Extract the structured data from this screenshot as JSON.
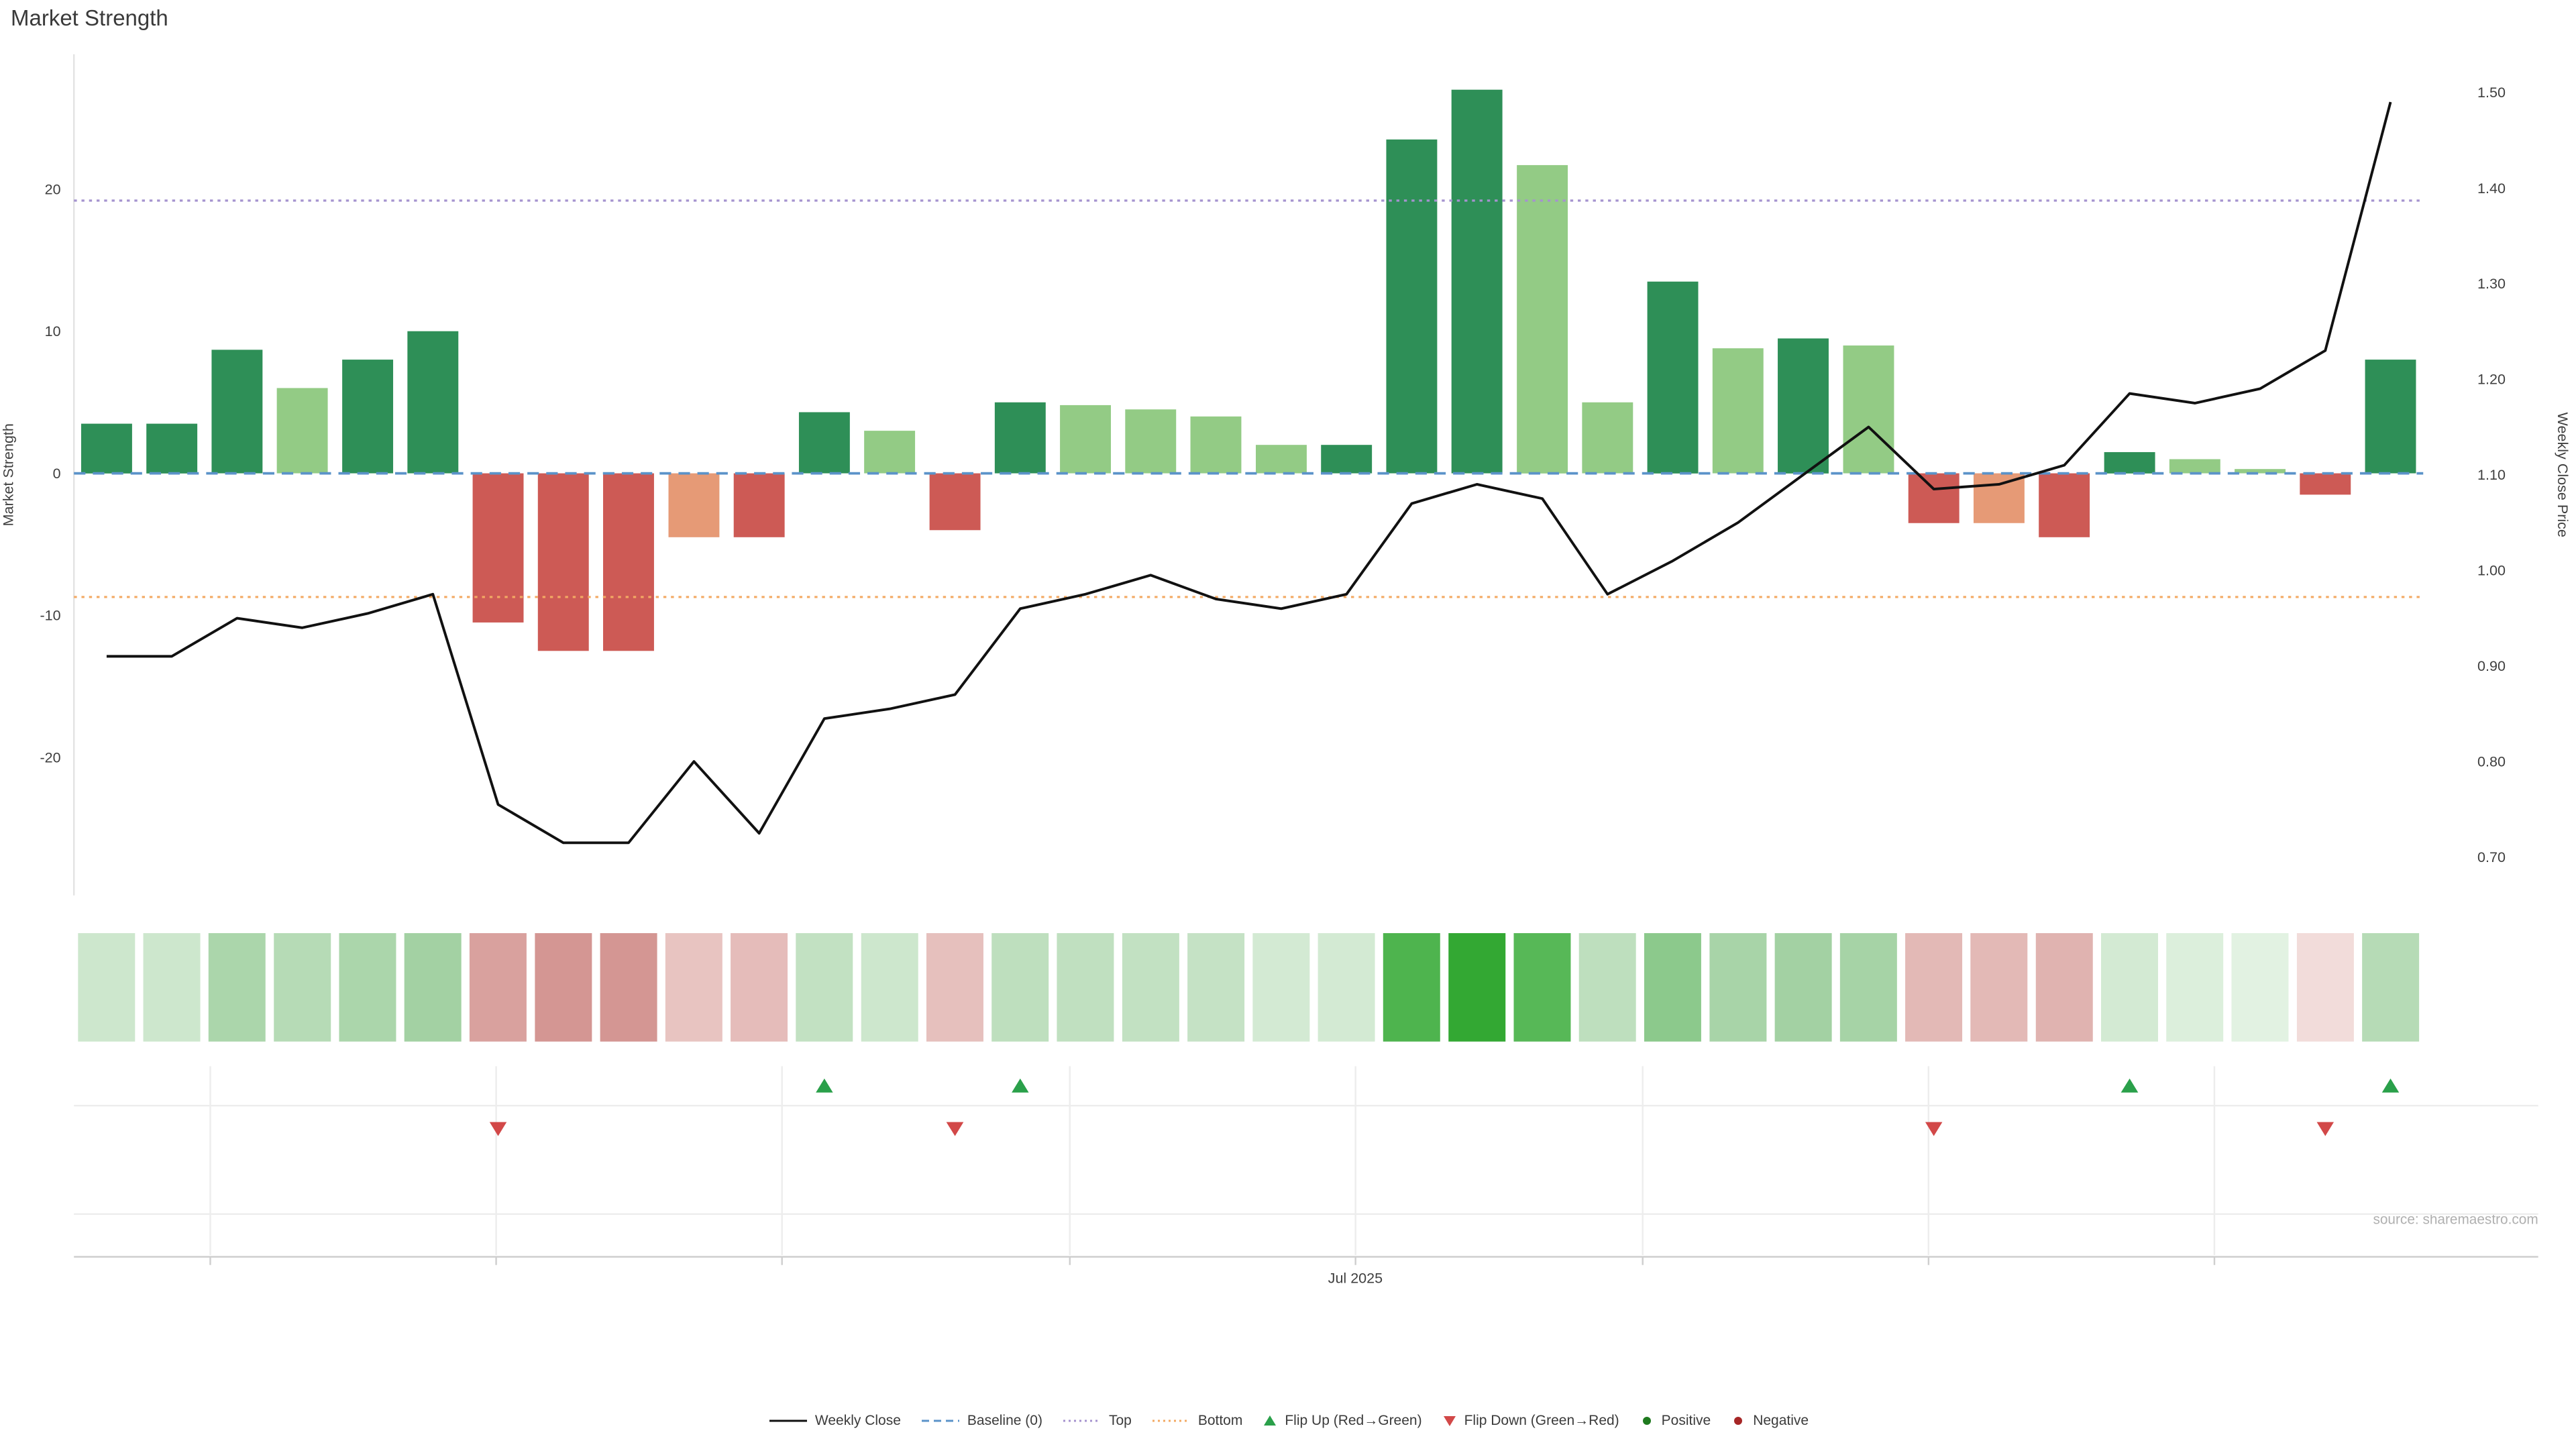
{
  "title": "Market Strength",
  "source": "source: sharemaestro.com",
  "axes": {
    "left_label": "Market Strength",
    "right_label": "Weekly Close Price",
    "left_ticks": [
      "-20",
      "-10",
      "0",
      "10",
      "20"
    ],
    "right_ticks": [
      "0.70",
      "0.80",
      "0.90",
      "1.00",
      "1.10",
      "1.20",
      "1.30",
      "1.40",
      "1.50"
    ],
    "x_tick_label": "Jul 2025"
  },
  "colors": {
    "bar_dark_green": "#2e8f57",
    "bar_light_green": "#93cb85",
    "bar_red": "#cd5a55",
    "bar_salmon": "#e69a76",
    "price_line": "#111111",
    "baseline": "#5b93c9",
    "top_line": "#a593cf",
    "bottom_line": "#f3a963",
    "flip_up": "#2aa04a",
    "flip_down": "#d24848"
  },
  "chart_data": {
    "type": "bar",
    "title": "Market Strength",
    "xlabel": "",
    "ylabel_left": "Market Strength",
    "ylabel_right": "Weekly Close Price",
    "n": 36,
    "ylim_left": [
      -29.7,
      29.5
    ],
    "ylim_right": [
      0.66,
      1.54
    ],
    "bars": {
      "name": "Market Strength",
      "values": [
        3.5,
        3.5,
        8.7,
        6,
        8,
        10,
        -10.5,
        -12.5,
        -12.5,
        -4.5,
        -4.5,
        4.3,
        3,
        -4,
        5,
        4.8,
        4.5,
        4,
        2,
        2,
        23.5,
        27,
        21.7,
        5,
        13.5,
        8.8,
        9.5,
        9,
        -3.5,
        -3.5,
        -4.5,
        1.5,
        1,
        0.3,
        -1.5,
        8
      ],
      "color_keys": [
        "dark_green",
        "dark_green",
        "dark_green",
        "light_green",
        "dark_green",
        "dark_green",
        "red",
        "red",
        "red",
        "salmon",
        "red",
        "dark_green",
        "light_green",
        "red",
        "dark_green",
        "light_green",
        "light_green",
        "light_green",
        "light_green",
        "dark_green",
        "dark_green",
        "dark_green",
        "light_green",
        "light_green",
        "dark_green",
        "light_green",
        "dark_green",
        "light_green",
        "red",
        "salmon",
        "red",
        "dark_green",
        "light_green",
        "light_green",
        "red",
        "dark_green"
      ]
    },
    "line": {
      "name": "Weekly Close",
      "axis": "right",
      "values": [
        0.91,
        0.91,
        0.95,
        0.94,
        0.955,
        0.975,
        0.755,
        0.715,
        0.715,
        0.8,
        0.725,
        0.845,
        0.855,
        0.87,
        0.96,
        0.975,
        0.995,
        0.97,
        0.96,
        0.975,
        1.07,
        1.09,
        1.075,
        0.975,
        1.01,
        1.05,
        1.1,
        1.15,
        1.085,
        1.09,
        1.11,
        1.185,
        1.175,
        1.19,
        1.23,
        1.49
      ]
    },
    "reference_lines": {
      "baseline": 0,
      "top": 19.2,
      "bottom": -8.7
    },
    "heatmap": [
      "#cde7cd",
      "#cde7cd",
      "#abd6ab",
      "#b6dbb6",
      "#abd6ab",
      "#a3d1a3",
      "#d9a19e",
      "#d49693",
      "#d49693",
      "#e8c4c1",
      "#e5bcba",
      "#c2e1c2",
      "#cde7cd",
      "#e6c0bd",
      "#bedfbe",
      "#c0e0c0",
      "#c2e1c2",
      "#c5e2c5",
      "#d3ead3",
      "#d3ead3",
      "#4eb44e",
      "#33a833",
      "#57b857",
      "#bedfbe",
      "#8cc98c",
      "#a8d4a8",
      "#a3d1a3",
      "#a6d3a6",
      "#e3b9b6",
      "#e3b9b6",
      "#e0b3b0",
      "#d3ead3",
      "#dcefdc",
      "#e2f2e2",
      "#f2dcda",
      "#b6dbb6"
    ],
    "flip_up_indices": [
      11,
      14,
      31,
      35
    ],
    "flip_down_indices": [
      6,
      13,
      28,
      34
    ],
    "x_gridline_slots": [
      2.09,
      6.47,
      10.85,
      15.26,
      19.64,
      24.04,
      28.42,
      32.8
    ],
    "x_tick_slot": 19.64
  },
  "legend": {
    "items": [
      {
        "label": "Weekly Close",
        "glyph": "line",
        "color": "#111111"
      },
      {
        "label": "Baseline (0)",
        "glyph": "dashed-line",
        "color": "#5b93c9"
      },
      {
        "label": "Top",
        "glyph": "dotted-line",
        "color": "#a593cf"
      },
      {
        "label": "Bottom",
        "glyph": "dotted-line",
        "color": "#f3a963"
      },
      {
        "label": "Flip Up (Red→Green)",
        "glyph": "triangle-up",
        "color": "#2aa04a"
      },
      {
        "label": "Flip Down (Green→Red)",
        "glyph": "triangle-down",
        "color": "#d24848"
      },
      {
        "label": "Positive",
        "glyph": "circle",
        "color": "#1f7a1f"
      },
      {
        "label": "Negative",
        "glyph": "circle",
        "color": "#a62626"
      }
    ]
  }
}
